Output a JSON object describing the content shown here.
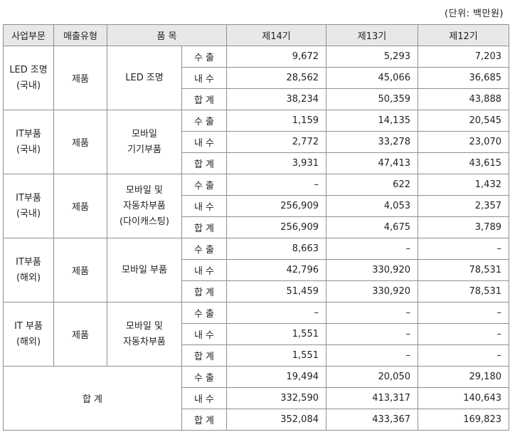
{
  "unit_note": "(단위: 백만원)",
  "headers": [
    "사업부문",
    "매출유형",
    "품 목",
    "제14기",
    "제13기",
    "제12기"
  ],
  "row_labels": [
    "수 출",
    "내 수",
    "합 계"
  ],
  "groups": [
    {
      "division": [
        "LED 조명",
        "(국내)"
      ],
      "type": "제품",
      "item": [
        "LED 조명"
      ],
      "rows": [
        [
          "9,672",
          "5,293",
          "7,203"
        ],
        [
          "28,562",
          "45,066",
          "36,685"
        ],
        [
          "38,234",
          "50,359",
          "43,888"
        ]
      ]
    },
    {
      "division": [
        "IT부품",
        "(국내)"
      ],
      "type": "제품",
      "item": [
        "모바일",
        "기기부품"
      ],
      "rows": [
        [
          "1,159",
          "14,135",
          "20,545"
        ],
        [
          "2,772",
          "33,278",
          "23,070"
        ],
        [
          "3,931",
          "47,413",
          "43,615"
        ]
      ]
    },
    {
      "division": [
        "IT부품",
        "(국내)"
      ],
      "type": "제품",
      "item": [
        "모바일 및",
        "자동차부품",
        "(다이캐스팅)"
      ],
      "rows": [
        [
          "–",
          "622",
          "1,432"
        ],
        [
          "256,909",
          "4,053",
          "2,357"
        ],
        [
          "256,909",
          "4,675",
          "3,789"
        ]
      ]
    },
    {
      "division": [
        "IT부품",
        "(해외)"
      ],
      "type": "제품",
      "item": [
        "모바일 부품"
      ],
      "rows": [
        [
          "8,663",
          "–",
          "–"
        ],
        [
          "42,796",
          "330,920",
          "78,531"
        ],
        [
          "51,459",
          "330,920",
          "78,531"
        ]
      ]
    },
    {
      "division": [
        "IT 부품",
        "(해외)"
      ],
      "type": "제품",
      "item": [
        "모바일 및",
        "자동차부품"
      ],
      "rows": [
        [
          "–",
          "–",
          "–"
        ],
        [
          "1,551",
          "–",
          "–"
        ],
        [
          "1,551",
          "–",
          "–"
        ]
      ]
    }
  ],
  "total": {
    "label": "합 계",
    "rows": [
      [
        "19,494",
        "20,050",
        "29,180"
      ],
      [
        "332,590",
        "413,317",
        "140,643"
      ],
      [
        "352,084",
        "433,367",
        "169,823"
      ]
    ]
  }
}
